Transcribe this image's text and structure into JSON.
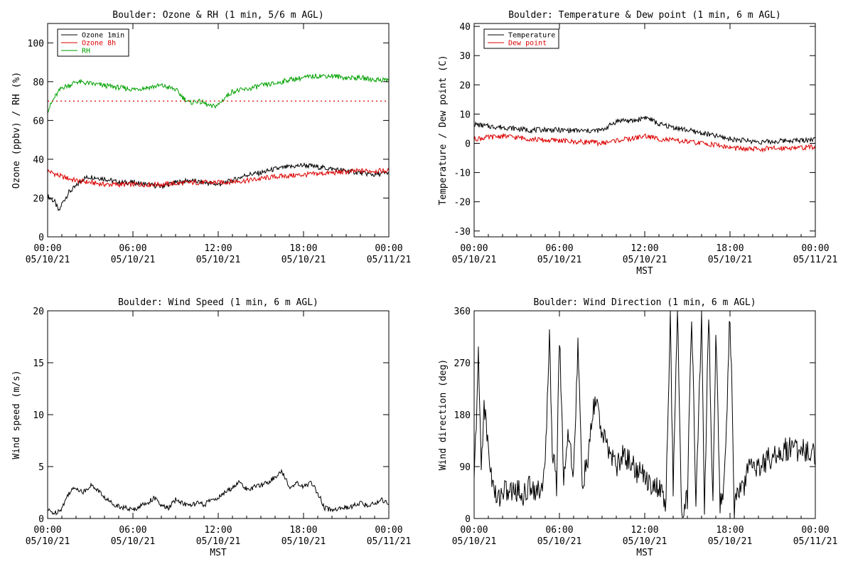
{
  "chart_data": [
    {
      "type": "line",
      "title": "Boulder: Ozone & RH (1 min, 5/6 m AGL)",
      "ylabel": "Ozone (ppbv) / RH (%)",
      "xlabel": "",
      "ylim": [
        0,
        110
      ],
      "yticks": [
        0,
        20,
        40,
        60,
        80,
        100
      ],
      "xlim": [
        0,
        24
      ],
      "xticks": [
        {
          "t": 0,
          "time": "00:00",
          "date": "05/10/21"
        },
        {
          "t": 6,
          "time": "06:00",
          "date": "05/10/21"
        },
        {
          "t": 12,
          "time": "12:00",
          "date": "05/10/21"
        },
        {
          "t": 18,
          "time": "18:00",
          "date": "05/10/21"
        },
        {
          "t": 24,
          "time": "00:00",
          "date": "05/11/21"
        }
      ],
      "legend": "top-left",
      "series": [
        {
          "name": "Ozone 1min",
          "color": "#000000",
          "x": [
            0,
            0.5,
            0.8,
            1,
            1.5,
            2,
            2.5,
            3,
            4,
            5,
            6,
            7,
            8,
            9,
            10,
            11,
            12,
            13,
            14,
            15,
            16,
            17,
            18,
            19,
            20,
            21,
            22,
            23,
            24
          ],
          "y": [
            21,
            18,
            13,
            17,
            23,
            26,
            30,
            31,
            30,
            28,
            28,
            27,
            26,
            28,
            29,
            28,
            27,
            29,
            32,
            33,
            35,
            36,
            37,
            36,
            35,
            34,
            33,
            32,
            33
          ]
        },
        {
          "name": "Ozone 8h",
          "color": "#dd0000",
          "x": [
            0,
            1,
            2,
            3,
            4,
            6,
            8,
            10,
            12,
            14,
            16,
            18,
            20,
            22,
            24
          ],
          "y": [
            34,
            31,
            29,
            28,
            27,
            27,
            27,
            28,
            28,
            29,
            31,
            32,
            33,
            34,
            34
          ]
        },
        {
          "name": "RH",
          "color": "#00a000",
          "x": [
            0,
            0.5,
            1,
            1.5,
            2,
            3,
            4,
            5,
            6,
            7,
            8,
            8.5,
            9,
            9.5,
            10,
            10.5,
            11,
            11.5,
            12,
            12.5,
            13,
            14,
            15,
            16,
            17,
            18,
            19,
            20,
            21,
            22,
            23,
            24
          ],
          "y": [
            65,
            72,
            77,
            78,
            80,
            79,
            78,
            77,
            76,
            77,
            78,
            77,
            76,
            72,
            69,
            70,
            69,
            67,
            68,
            72,
            75,
            76,
            78,
            79,
            81,
            82,
            83,
            83,
            82,
            82,
            81,
            81
          ]
        },
        {
          "name": "",
          "color": "#dd0000",
          "dotted": true,
          "x": [
            0,
            24
          ],
          "y": [
            70,
            70
          ]
        }
      ]
    },
    {
      "type": "line",
      "title": "Boulder: Temperature & Dew point (1 min, 6 m AGL)",
      "ylabel": "Temperature / Dew point (C)",
      "xlabel": "MST",
      "ylim": [
        -32,
        41
      ],
      "yticks": [
        -30,
        -20,
        -10,
        0,
        10,
        20,
        30,
        40
      ],
      "xlim": [
        0,
        24
      ],
      "xticks": [
        {
          "t": 0,
          "time": "00:00",
          "date": "05/10/21"
        },
        {
          "t": 6,
          "time": "06:00",
          "date": "05/10/21"
        },
        {
          "t": 12,
          "time": "12:00",
          "date": "05/10/21"
        },
        {
          "t": 18,
          "time": "18:00",
          "date": "05/10/21"
        },
        {
          "t": 24,
          "time": "00:00",
          "date": "05/11/21"
        }
      ],
      "legend": "top-left",
      "series": [
        {
          "name": "Temperature",
          "color": "#000000",
          "x": [
            0,
            1,
            2,
            3,
            4,
            5,
            6,
            7,
            8,
            9,
            9.5,
            10,
            10.5,
            11,
            11.5,
            12,
            12.5,
            13,
            14,
            15,
            16,
            17,
            18,
            19,
            20,
            21,
            22,
            23,
            24
          ],
          "y": [
            6.5,
            5.8,
            5.5,
            5.0,
            4.5,
            4.7,
            4.5,
            4.4,
            4.2,
            4.5,
            6.0,
            7.5,
            8.0,
            7.5,
            8.0,
            9.0,
            8.0,
            6.5,
            5.5,
            4.5,
            3.5,
            2.5,
            1.5,
            1.0,
            0.5,
            0.5,
            1.0,
            1.0,
            1.5
          ]
        },
        {
          "name": "Dew point",
          "color": "#dd0000",
          "x": [
            0,
            1,
            2,
            3,
            4,
            5,
            6,
            7,
            8,
            9,
            10,
            11,
            12,
            13,
            14,
            15,
            16,
            17,
            18,
            19,
            20,
            21,
            22,
            23,
            24
          ],
          "y": [
            1.5,
            2.0,
            2.5,
            2.0,
            1.5,
            1.0,
            1.0,
            0.5,
            0.5,
            0.0,
            1.0,
            1.5,
            2.5,
            1.5,
            1.0,
            0.5,
            0.0,
            -0.5,
            -1.5,
            -2.0,
            -2.0,
            -1.8,
            -1.5,
            -1.5,
            -1.2
          ]
        }
      ]
    },
    {
      "type": "line",
      "title": "Boulder: Wind Speed (1 min, 6 m AGL)",
      "ylabel": "Wind speed (m/s)",
      "xlabel": "MST",
      "ylim": [
        0,
        20
      ],
      "yticks": [
        0,
        5,
        10,
        15,
        20
      ],
      "xlim": [
        0,
        24
      ],
      "xticks": [
        {
          "t": 0,
          "time": "00:00",
          "date": "05/10/21"
        },
        {
          "t": 6,
          "time": "06:00",
          "date": "05/10/21"
        },
        {
          "t": 12,
          "time": "12:00",
          "date": "05/10/21"
        },
        {
          "t": 18,
          "time": "18:00",
          "date": "05/10/21"
        },
        {
          "t": 24,
          "time": "00:00",
          "date": "05/11/21"
        }
      ],
      "series": [
        {
          "name": "",
          "color": "#000000",
          "x": [
            0,
            0.5,
            1,
            1.5,
            2,
            2.5,
            3,
            3.5,
            4,
            4.5,
            5,
            5.5,
            6,
            6.5,
            7,
            7.5,
            8,
            8.5,
            9,
            9.5,
            10,
            10.5,
            11,
            11.5,
            12,
            12.5,
            13,
            13.5,
            14,
            14.5,
            15,
            15.5,
            16,
            16.5,
            17,
            17.5,
            18,
            18.5,
            19,
            19.5,
            20,
            20.5,
            21,
            21.5,
            22,
            22.5,
            23,
            23.5,
            24
          ],
          "y": [
            0.8,
            0.5,
            1.0,
            2.5,
            3.0,
            2.5,
            3.2,
            2.8,
            2.0,
            1.5,
            1.2,
            1.0,
            0.8,
            1.2,
            1.5,
            2.0,
            1.2,
            1.0,
            1.8,
            1.5,
            1.2,
            1.5,
            1.3,
            1.8,
            2.0,
            2.5,
            3.0,
            3.5,
            2.8,
            3.0,
            3.2,
            3.5,
            4.0,
            4.5,
            3.0,
            3.5,
            3.0,
            3.5,
            2.5,
            1.0,
            0.8,
            1.0,
            1.0,
            1.2,
            1.5,
            1.2,
            1.5,
            1.8,
            1.5
          ]
        }
      ]
    },
    {
      "type": "line",
      "title": "Boulder: Wind Direction (1 min, 6 m AGL)",
      "ylabel": "Wind direction (deg)",
      "xlabel": "MST",
      "ylim": [
        0,
        360
      ],
      "yticks": [
        0,
        90,
        180,
        270,
        360
      ],
      "xlim": [
        0,
        24
      ],
      "xticks": [
        {
          "t": 0,
          "time": "00:00",
          "date": "05/10/21"
        },
        {
          "t": 6,
          "time": "06:00",
          "date": "05/10/21"
        },
        {
          "t": 12,
          "time": "12:00",
          "date": "05/10/21"
        },
        {
          "t": 18,
          "time": "18:00",
          "date": "05/10/21"
        },
        {
          "t": 24,
          "time": "00:00",
          "date": "05/11/21"
        }
      ],
      "series": [
        {
          "name": "",
          "color": "#000000",
          "x": [
            0,
            0.3,
            0.5,
            0.7,
            1.0,
            1.3,
            1.6,
            2.0,
            2.5,
            3.0,
            3.5,
            4.0,
            4.5,
            5.0,
            5.3,
            5.5,
            5.8,
            6.0,
            6.3,
            6.6,
            7.0,
            7.3,
            7.6,
            8.0,
            8.5,
            8.8,
            9.0,
            9.5,
            10.0,
            10.5,
            11.0,
            11.5,
            12.0,
            12.5,
            13.0,
            13.5,
            13.8,
            14.0,
            14.3,
            14.6,
            15.0,
            15.3,
            15.6,
            16.0,
            16.2,
            16.5,
            16.8,
            17.0,
            17.3,
            17.6,
            18.0,
            18.3,
            18.6,
            19.0,
            19.5,
            20.0,
            20.5,
            21.0,
            21.5,
            22.0,
            22.5,
            23.0,
            23.5,
            24.0
          ],
          "y": [
            60,
            280,
            90,
            200,
            120,
            60,
            30,
            50,
            45,
            50,
            40,
            60,
            45,
            80,
            330,
            120,
            60,
            320,
            70,
            150,
            80,
            300,
            60,
            100,
            210,
            180,
            140,
            120,
            90,
            110,
            100,
            80,
            75,
            60,
            50,
            30,
            360,
            40,
            360,
            20,
            30,
            360,
            20,
            360,
            10,
            360,
            20,
            330,
            30,
            60,
            360,
            20,
            40,
            60,
            100,
            90,
            100,
            110,
            115,
            120,
            125,
            115,
            120,
            110
          ]
        }
      ]
    }
  ]
}
